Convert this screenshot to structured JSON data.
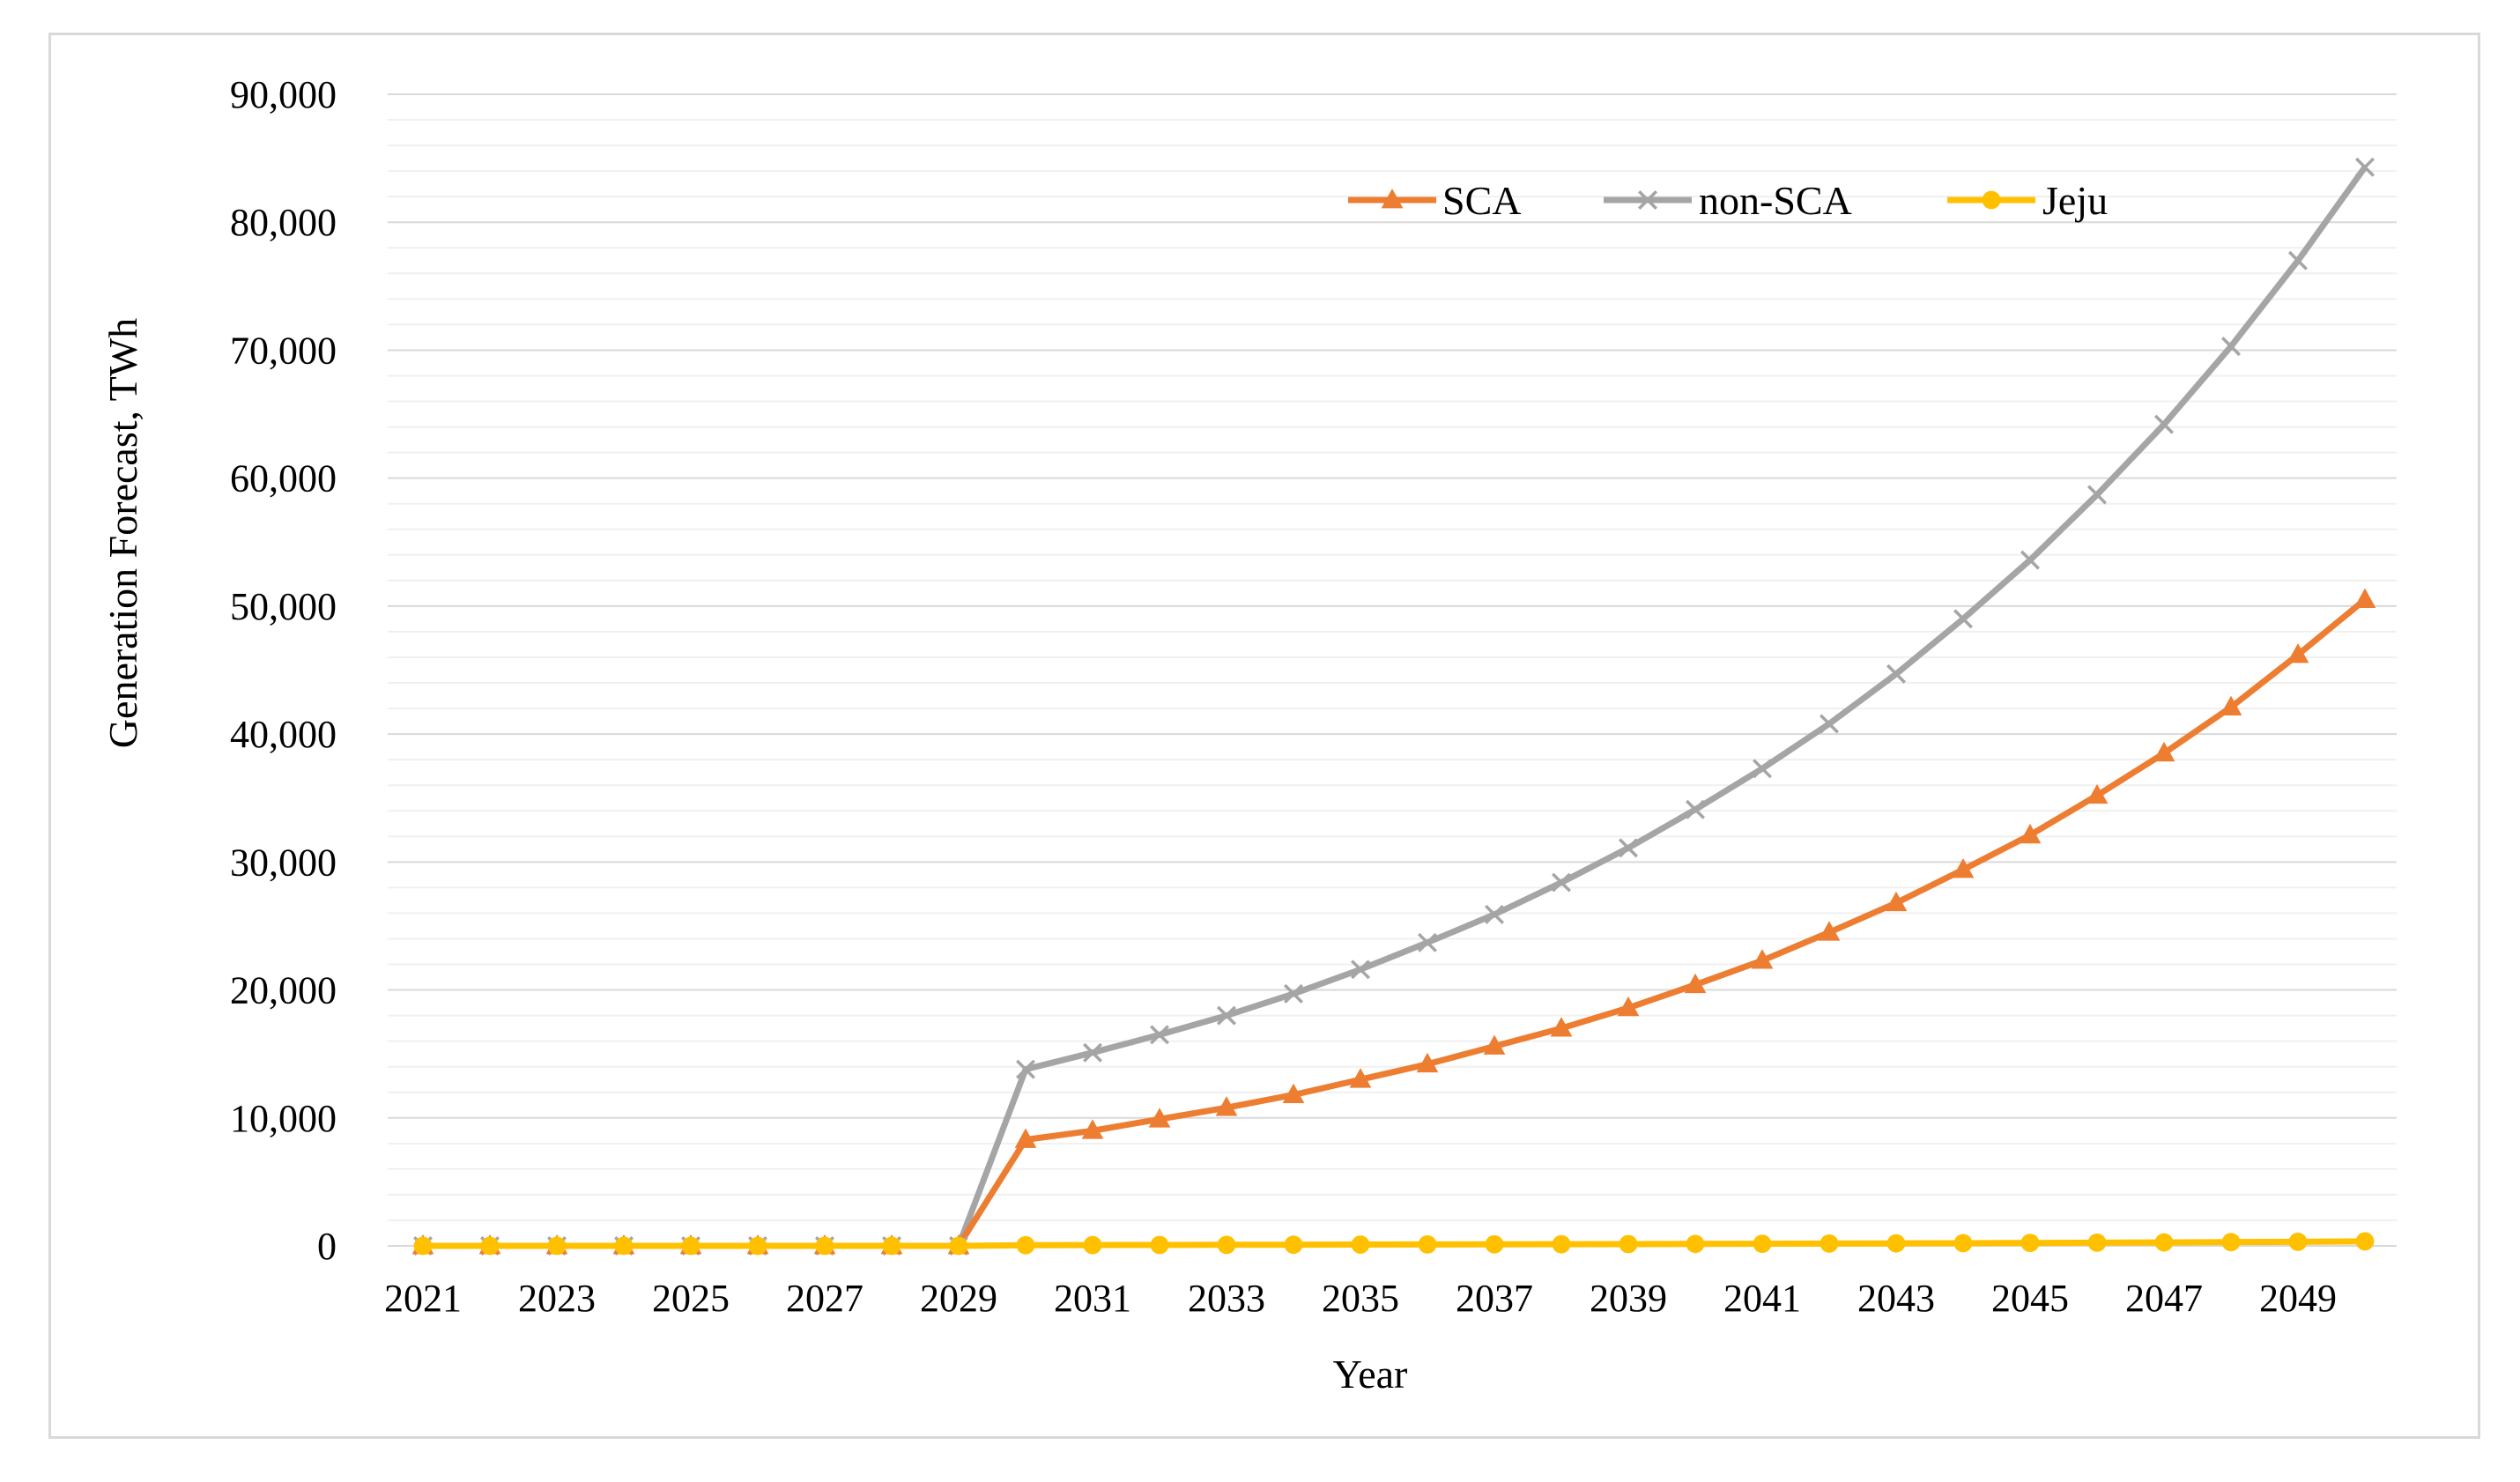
{
  "chart_data": {
    "type": "line",
    "title": "",
    "xlabel": "Year",
    "ylabel": "Generation Forecast, TWh",
    "ylim": [
      0,
      90000
    ],
    "y_major_step": 10000,
    "y_minor_step": 2000,
    "y_tick_labels": [
      "0",
      "10,000",
      "20,000",
      "30,000",
      "40,000",
      "50,000",
      "60,000",
      "70,000",
      "80,000",
      "90,000"
    ],
    "x": [
      2021,
      2022,
      2023,
      2024,
      2025,
      2026,
      2027,
      2028,
      2029,
      2030,
      2031,
      2032,
      2033,
      2034,
      2035,
      2036,
      2037,
      2038,
      2039,
      2040,
      2041,
      2042,
      2043,
      2044,
      2045,
      2046,
      2047,
      2048,
      2049,
      2050
    ],
    "x_tick_labels": [
      "2021",
      "2023",
      "2025",
      "2027",
      "2029",
      "2031",
      "2033",
      "2035",
      "2037",
      "2039",
      "2041",
      "2043",
      "2045",
      "2047",
      "2049"
    ],
    "legend_position": "top-right",
    "series": [
      {
        "name": "SCA",
        "color": "#ED7D31",
        "marker": "triangle",
        "values": [
          0,
          0,
          0,
          0,
          0,
          0,
          0,
          0,
          0,
          8300,
          9000,
          9900,
          10800,
          11800,
          13000,
          14200,
          15600,
          17000,
          18600,
          20400,
          22300,
          24500,
          26800,
          29400,
          32100,
          35200,
          38500,
          42100,
          46200,
          50500
        ]
      },
      {
        "name": "non-SCA",
        "color": "#A5A5A5",
        "marker": "x",
        "values": [
          0,
          0,
          0,
          0,
          0,
          0,
          0,
          0,
          0,
          13800,
          15100,
          16500,
          18000,
          19700,
          21600,
          23700,
          25900,
          28400,
          31100,
          34100,
          37300,
          40800,
          44700,
          49000,
          53600,
          58700,
          64200,
          70300,
          77000,
          84300
        ]
      },
      {
        "name": "Jeju",
        "color": "#FFC000",
        "marker": "circle",
        "values": [
          0,
          0,
          0,
          0,
          0,
          0,
          0,
          0,
          0,
          50,
          60,
          70,
          80,
          90,
          100,
          110,
          120,
          130,
          140,
          150,
          165,
          180,
          195,
          210,
          230,
          250,
          270,
          295,
          320,
          350
        ]
      }
    ]
  }
}
